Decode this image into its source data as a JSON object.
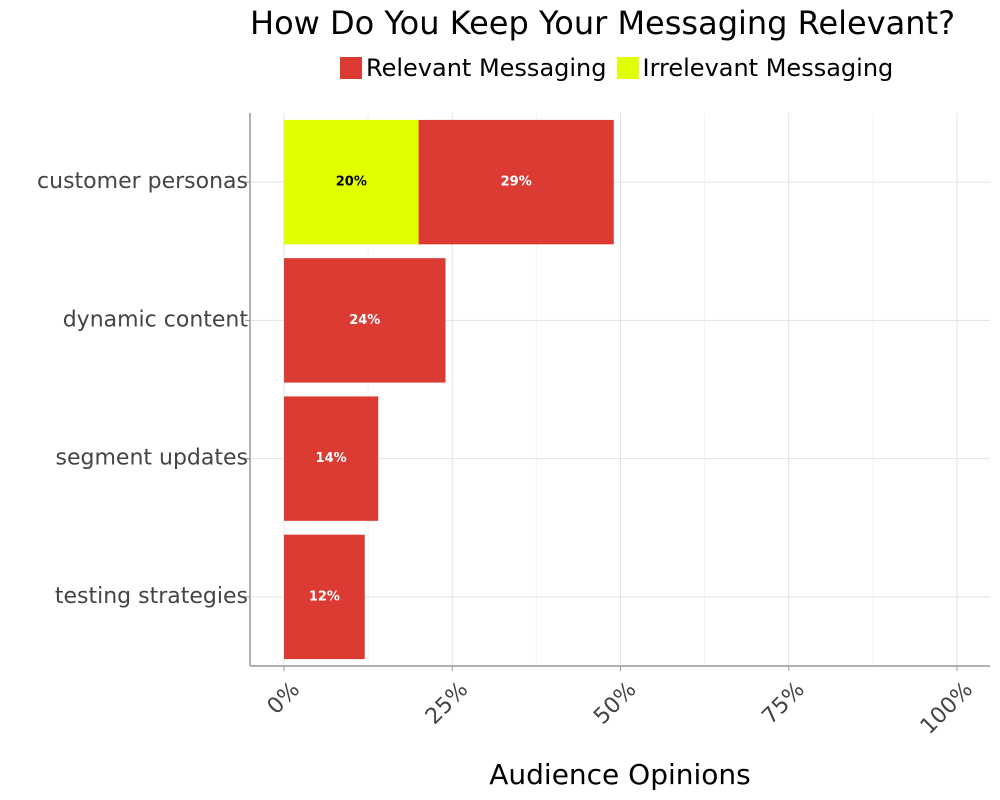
{
  "chart_data": {
    "type": "bar",
    "orientation": "horizontal",
    "stacked": true,
    "title": "How Do You Keep Your Messaging Relevant?",
    "xlabel": "Audience Opinions",
    "ylabel": "",
    "xlim": [
      0,
      100
    ],
    "x_ticks": [
      "0%",
      "25%",
      "50%",
      "75%",
      "100%"
    ],
    "grid": true,
    "legend_position": "top",
    "categories": [
      "customer personas",
      "dynamic content",
      "segment updates",
      "testing strategies"
    ],
    "series": [
      {
        "name": "Irrelevant Messaging",
        "color": "#e2ff00",
        "label_color": "#000000",
        "values": [
          20,
          0,
          0,
          0
        ],
        "labels": [
          "20%",
          "",
          "",
          ""
        ]
      },
      {
        "name": "Relevant Messaging",
        "color": "#db3b33",
        "label_color": "#ffffff",
        "values": [
          29,
          24,
          14,
          12
        ],
        "labels": [
          "29%",
          "24%",
          "14%",
          "12%"
        ]
      }
    ],
    "legend_order": [
      "Relevant Messaging",
      "Irrelevant Messaging"
    ]
  }
}
